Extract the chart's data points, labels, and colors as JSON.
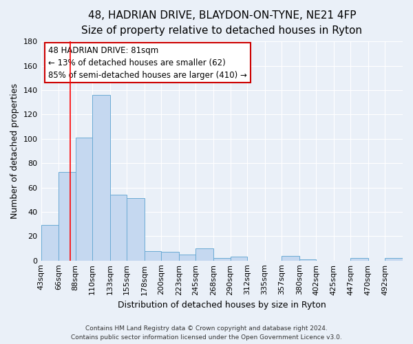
{
  "title1": "48, HADRIAN DRIVE, BLAYDON-ON-TYNE, NE21 4FP",
  "title2": "Size of property relative to detached houses in Ryton",
  "xlabel": "Distribution of detached houses by size in Ryton",
  "ylabel": "Number of detached properties",
  "categories": [
    "43sqm",
    "66sqm",
    "88sqm",
    "110sqm",
    "133sqm",
    "155sqm",
    "178sqm",
    "200sqm",
    "223sqm",
    "245sqm",
    "268sqm",
    "290sqm",
    "312sqm",
    "335sqm",
    "357sqm",
    "380sqm",
    "402sqm",
    "425sqm",
    "447sqm",
    "470sqm",
    "492sqm"
  ],
  "values": [
    29,
    73,
    101,
    136,
    54,
    51,
    8,
    7,
    5,
    10,
    2,
    3,
    0,
    0,
    4,
    1,
    0,
    0,
    2,
    0,
    2
  ],
  "bar_color": "#c5d8f0",
  "bar_edge_color": "#6aaad4",
  "bin_edges": [
    43,
    66,
    88,
    110,
    133,
    155,
    178,
    200,
    223,
    245,
    268,
    290,
    312,
    335,
    357,
    380,
    402,
    425,
    447,
    470,
    492,
    515
  ],
  "ylim": [
    0,
    180
  ],
  "yticks": [
    0,
    20,
    40,
    60,
    80,
    100,
    120,
    140,
    160,
    180
  ],
  "redline_x": 81,
  "annotation_text_line1": "48 HADRIAN DRIVE: 81sqm",
  "annotation_text_line2": "← 13% of detached houses are smaller (62)",
  "annotation_text_line3": "85% of semi-detached houses are larger (410) →",
  "footer1": "Contains HM Land Registry data © Crown copyright and database right 2024.",
  "footer2": "Contains public sector information licensed under the Open Government Licence v3.0.",
  "background_color": "#eaf0f8",
  "grid_color": "#ffffff",
  "title_fontsize": 11,
  "subtitle_fontsize": 9.5,
  "label_fontsize": 9,
  "tick_fontsize": 8,
  "footer_fontsize": 6.5
}
